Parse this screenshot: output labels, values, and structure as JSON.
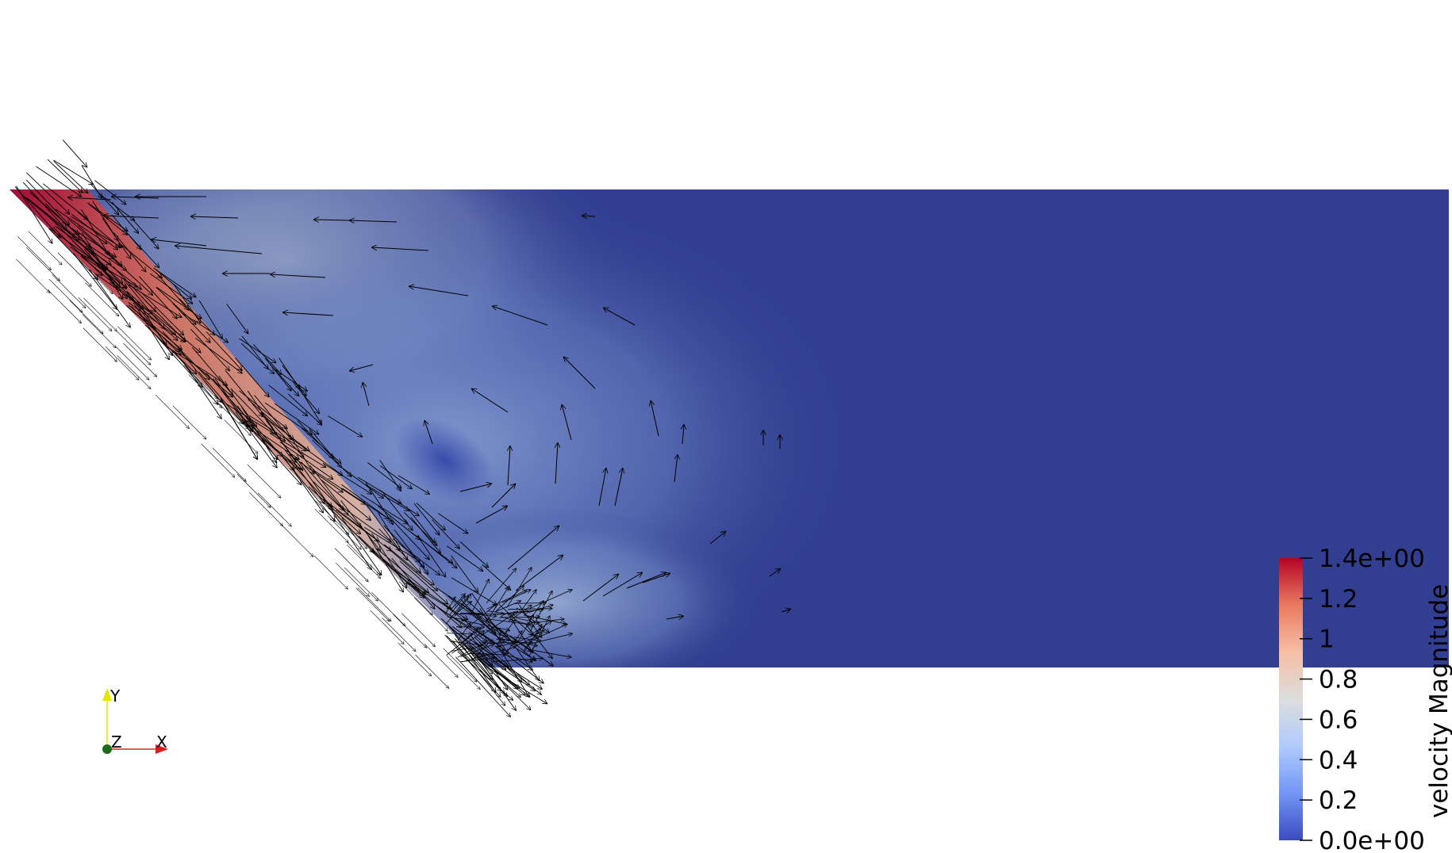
{
  "colorbar": {
    "title": "velocity Magnitude",
    "range": [
      0,
      1.4
    ],
    "ticks": [
      {
        "value": 1.4,
        "label": "1.4e+00"
      },
      {
        "value": 1.2,
        "label": "1.2"
      },
      {
        "value": 1.0,
        "label": "1"
      },
      {
        "value": 0.8,
        "label": "0.8"
      },
      {
        "value": 0.6,
        "label": "0.6"
      },
      {
        "value": 0.4,
        "label": "0.4"
      },
      {
        "value": 0.2,
        "label": "0.2"
      },
      {
        "value": 0.0,
        "label": "0.0e+00"
      }
    ],
    "colormap": [
      "#3b4cc0",
      "#7396f5",
      "#b0cbfc",
      "#dcdddd",
      "#f6bfa6",
      "#ea7b60",
      "#b40426"
    ]
  },
  "axes_widget": {
    "x_label": "X",
    "y_label": "Y",
    "z_label": "Z",
    "x_color": "#d62020",
    "y_color": "#e6e600",
    "z_color": "#1a6b1a"
  },
  "field": {
    "background_color": "#323f91",
    "glyph_color": "#000000"
  }
}
